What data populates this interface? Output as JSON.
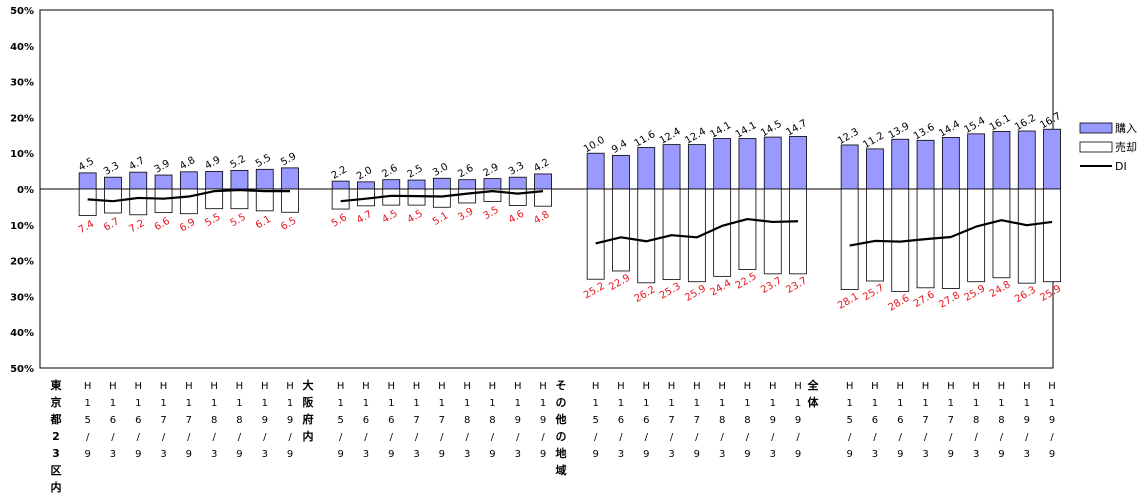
{
  "chart_data": {
    "type": "bar",
    "ylim": [
      -50,
      50
    ],
    "y_ticks": [
      "50%",
      "40%",
      "30%",
      "20%",
      "10%",
      "0%",
      "10%",
      "20%",
      "30%",
      "40%",
      "50%"
    ],
    "y_tick_values": [
      50,
      40,
      30,
      20,
      10,
      0,
      -10,
      -20,
      -30,
      -40,
      -50
    ],
    "grid": false,
    "legend_position": "right",
    "colors": {
      "buy": "#9999ff",
      "sell": "#ffffff",
      "di": "#000000",
      "sell_label": "#e8141e"
    },
    "legend": [
      {
        "key": "buy",
        "label": "購入"
      },
      {
        "key": "sell",
        "label": "売却"
      },
      {
        "key": "di",
        "label": "DI"
      }
    ],
    "groups": [
      {
        "label": "東京都23区内",
        "categories": [
          "H15/9",
          "H16/3",
          "H16/9",
          "H17/3",
          "H17/9",
          "H18/3",
          "H18/9",
          "H19/3",
          "H19/9"
        ],
        "buy": [
          4.5,
          3.3,
          4.7,
          3.9,
          4.8,
          4.9,
          5.2,
          5.5,
          5.9
        ],
        "sell": [
          7.4,
          6.7,
          7.2,
          6.6,
          6.9,
          5.5,
          5.5,
          6.1,
          6.5
        ],
        "di": [
          -2.9,
          -3.4,
          -2.5,
          -2.7,
          -2.1,
          -0.6,
          -0.3,
          -0.6,
          -0.6
        ]
      },
      {
        "label": "大阪府内",
        "categories": [
          "H15/9",
          "H16/3",
          "H16/9",
          "H17/3",
          "H17/9",
          "H18/3",
          "H18/9",
          "H19/3",
          "H19/9"
        ],
        "buy": [
          2.2,
          2.0,
          2.6,
          2.5,
          3.0,
          2.6,
          2.9,
          3.3,
          4.2
        ],
        "sell": [
          5.6,
          4.7,
          4.5,
          4.5,
          5.1,
          3.9,
          3.5,
          4.6,
          4.8
        ],
        "di": [
          -3.4,
          -2.7,
          -1.9,
          -2.0,
          -2.1,
          -1.3,
          -0.6,
          -1.3,
          -0.6
        ]
      },
      {
        "label": "その他の地域",
        "categories": [
          "H15/9",
          "H16/3",
          "H16/9",
          "H17/3",
          "H17/9",
          "H18/3",
          "H18/9",
          "H19/3",
          "H19/9"
        ],
        "buy": [
          10.0,
          9.4,
          11.6,
          12.4,
          12.4,
          14.1,
          14.1,
          14.5,
          14.7
        ],
        "sell": [
          25.2,
          22.9,
          26.2,
          25.3,
          25.9,
          24.4,
          22.5,
          23.7,
          23.7
        ],
        "di": [
          -15.2,
          -13.5,
          -14.6,
          -12.9,
          -13.5,
          -10.3,
          -8.4,
          -9.2,
          -9.0
        ]
      },
      {
        "label": "全体",
        "categories": [
          "H15/9",
          "H16/3",
          "H16/9",
          "H17/3",
          "H17/9",
          "H18/3",
          "H18/9",
          "H19/3",
          "H19/9"
        ],
        "buy": [
          12.3,
          11.2,
          13.9,
          13.6,
          14.4,
          15.4,
          16.1,
          16.2,
          16.7
        ],
        "sell": [
          28.1,
          25.7,
          28.6,
          27.6,
          27.8,
          25.9,
          24.8,
          26.3,
          25.9
        ],
        "di": [
          -15.8,
          -14.5,
          -14.7,
          -14.0,
          -13.4,
          -10.5,
          -8.7,
          -10.1,
          -9.2
        ]
      }
    ]
  }
}
